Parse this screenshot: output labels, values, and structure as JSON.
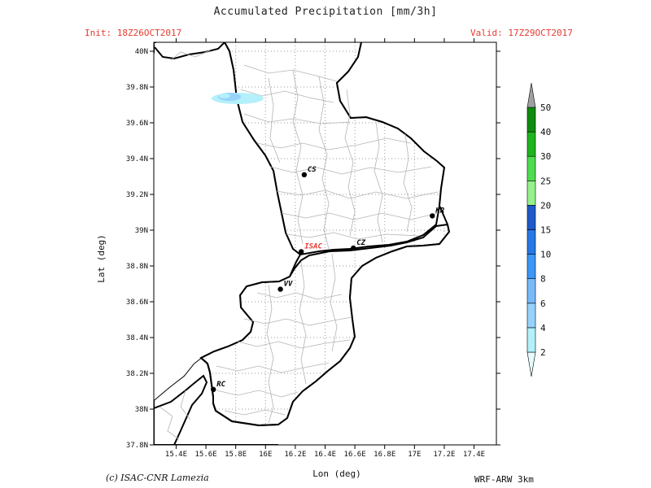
{
  "header": {
    "title": "Accumulated Precipitation [mm/3h]",
    "init": "Init: 18Z26OCT2017",
    "valid": "Valid: 17Z29OCT2017"
  },
  "axes": {
    "xlabel": "Lon (deg)",
    "ylabel": "Lat (deg)",
    "xticks": [
      "15.4E",
      "15.6E",
      "15.8E",
      "16E",
      "16.2E",
      "16.4E",
      "16.6E",
      "16.8E",
      "17E",
      "17.2E",
      "17.4E"
    ],
    "yticks": [
      "37.8N",
      "38N",
      "38.2N",
      "38.4N",
      "38.6N",
      "38.8N",
      "39N",
      "39.2N",
      "39.4N",
      "39.6N",
      "39.8N",
      "40N"
    ],
    "xlim": [
      15.25,
      17.55
    ],
    "ylim": [
      37.8,
      40.05
    ]
  },
  "colorbar": {
    "levels": [
      "2",
      "4",
      "6",
      "8",
      "10",
      "15",
      "20",
      "25",
      "30",
      "40",
      "50"
    ],
    "colors": [
      "#e6fbff",
      "#b4f0fa",
      "#96d2fa",
      "#78b9fa",
      "#3c96f5",
      "#2878e6",
      "#1e5ac8",
      "#96f08c",
      "#50dc50",
      "#1eb41e",
      "#0f8c0f",
      "#fa3c3c"
    ],
    "overflow_color": "#a0a0a0"
  },
  "cities": [
    {
      "label": "CS",
      "lon": 16.26,
      "lat": 39.31,
      "color": "#000000"
    },
    {
      "label": "KR",
      "lon": 17.12,
      "lat": 39.08,
      "color": "#000000"
    },
    {
      "label": "ISAC",
      "lon": 16.24,
      "lat": 38.88,
      "color": "#e8382e"
    },
    {
      "label": "CZ",
      "lon": 16.59,
      "lat": 38.9,
      "color": "#000000"
    },
    {
      "label": "VV",
      "lon": 16.1,
      "lat": 38.67,
      "color": "#000000"
    },
    {
      "label": "RC",
      "lon": 15.65,
      "lat": 38.11,
      "color": "#000000"
    }
  ],
  "precip_area": {
    "label": "2-6 mm/3h",
    "lon": 15.8,
    "lat": 39.79
  },
  "footer": {
    "copyright": "(c) ISAC-CNR Lamezia",
    "model": "WRF-ARW 3km"
  }
}
